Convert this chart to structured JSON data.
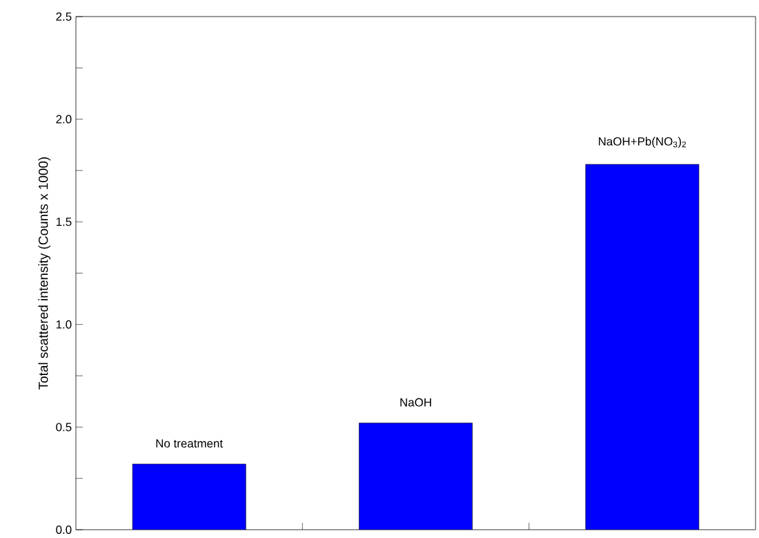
{
  "chart_data": {
    "type": "bar",
    "ylabel": "Total scattered intensity (Counts x 1000)",
    "categories": [
      "No treatment",
      "NaOH",
      "NaOH+Pb(NO$_{3}$)$_{2}$"
    ],
    "values": [
      0.32,
      0.52,
      1.78
    ],
    "color": "#0000ff",
    "ylim": [
      0,
      2.5
    ],
    "yticks": [
      {
        "value": 0,
        "label": "0.0"
      },
      {
        "value": 0.25,
        "label": null
      },
      {
        "value": 0.5,
        "label": "0.5"
      },
      {
        "value": 0.75,
        "label": null
      },
      {
        "value": 1,
        "label": "1.0"
      },
      {
        "value": 1.25,
        "label": null
      },
      {
        "value": 1.5,
        "label": "1.5"
      },
      {
        "value": 1.75,
        "label": null
      },
      {
        "value": 2,
        "label": "2.0"
      },
      {
        "value": 2.25,
        "label": null
      },
      {
        "value": 2.5,
        "label": "2.5"
      }
    ],
    "grid": false
  }
}
